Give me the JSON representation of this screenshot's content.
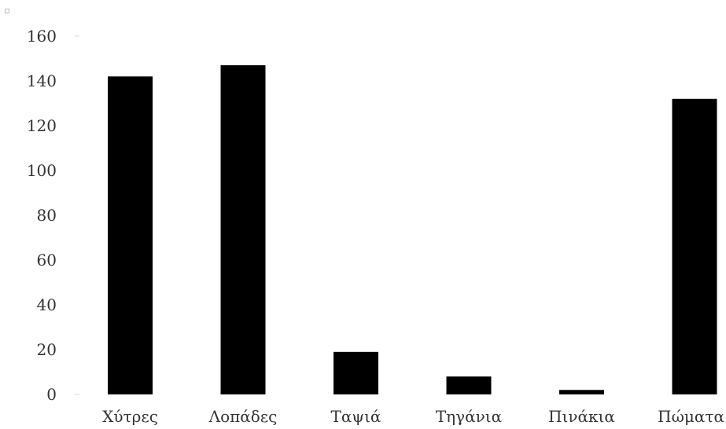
{
  "chart_data": {
    "type": "bar",
    "title": "",
    "xlabel": "",
    "ylabel": "",
    "categories": [
      "Χύτρες",
      "Λοπάδες",
      "Ταψιά",
      "Τηγάνια",
      "Πινάκια",
      "Πώματα"
    ],
    "values": [
      142,
      147,
      19,
      8,
      2,
      132
    ],
    "ylim": [
      0,
      160
    ],
    "yticks": [
      0,
      20,
      40,
      60,
      80,
      100,
      120,
      140,
      160
    ],
    "grid": false,
    "legend": "none",
    "bar_color": "#000000"
  }
}
